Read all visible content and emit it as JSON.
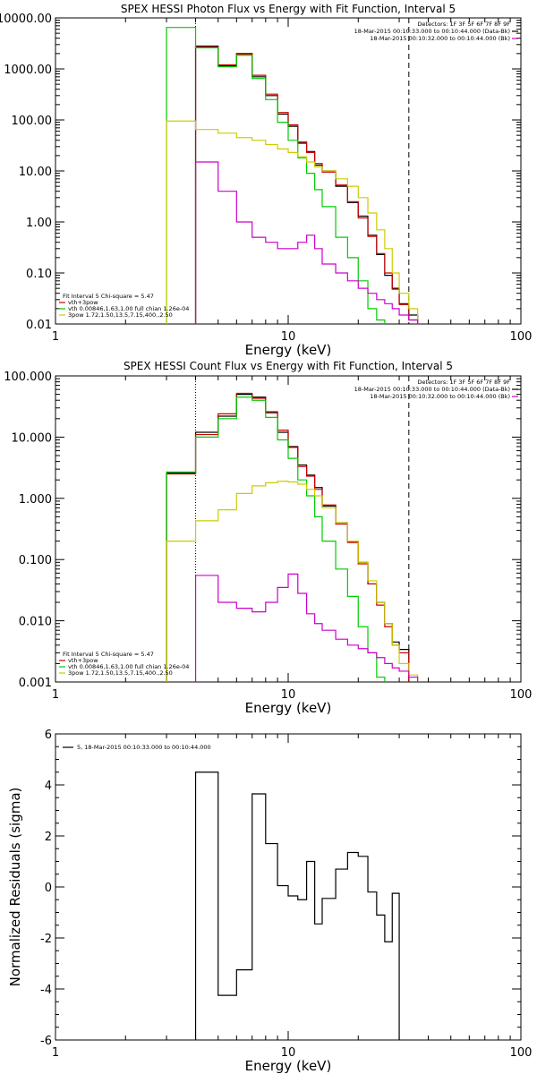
{
  "chart_data": [
    {
      "type": "line",
      "step": true,
      "title": "SPEX HESSI Photon Flux vs Energy with Fit Function, Interval 5",
      "xlabel": "Energy (keV)",
      "ylabel": "",
      "x_scale": "log",
      "y_scale": "log",
      "xlim": [
        1,
        100
      ],
      "ylim": [
        0.01,
        10000
      ],
      "x_ticks": [
        1,
        10,
        100
      ],
      "x_tick_labels": [
        "1",
        "10",
        "100"
      ],
      "y_ticks": [
        0.01,
        0.1,
        1,
        10,
        100,
        1000,
        10000
      ],
      "y_tick_labels": [
        "0.01",
        "0.10",
        "1.00",
        "10.00",
        "100.00",
        "1000.00",
        "10000.00"
      ],
      "dotted_vline": 4.0,
      "dashed_vline": 33.0,
      "legend_top": [
        {
          "text": "Detectors: 1F 3F 5F 6F 7F 8F 9F",
          "color": ""
        },
        {
          "text": "18-Mar-2015 00:10:33.000 to 00:10:44.000 (Data-Bk)",
          "color": "#000000"
        },
        {
          "text": "18-Mar-2015 00:10:32.000 to 00:10:44.000 (Bk)",
          "color": "#cc00cc"
        }
      ],
      "legend_bottom": [
        {
          "text": "Fit Interval 5   Chi-square = 5.47",
          "color": ""
        },
        {
          "text": "vth+3pow",
          "color": "#cc0000"
        },
        {
          "text": "vth 0.00846,1.63,1.00  full chian 1.26e-04",
          "color": "#00cc00"
        },
        {
          "text": "3pow 1.72,1.50,13.5,7.15,400.,2.50",
          "color": "#cccc00"
        }
      ],
      "bin_edges": [
        3.0,
        4.0,
        5.0,
        6.0,
        7.0,
        8.0,
        9.0,
        10.0,
        11.0,
        12.0,
        13.0,
        14.0,
        16.0,
        18.0,
        20.0,
        22.0,
        24.0,
        26.0,
        28.0,
        30.0,
        33.0,
        36.0
      ],
      "series": [
        {
          "name": "Data-Bk",
          "color": "#000000",
          "start_edge": 1,
          "values": [
            2800,
            1150,
            2000,
            700,
            300,
            130,
            75,
            35,
            24,
            13,
            10,
            5,
            2.4,
            1.3,
            0.55,
            0.23,
            0.09,
            0.05,
            0.025,
            0.015
          ]
        },
        {
          "name": "vth+3pow",
          "color": "#cc0000",
          "start_edge": 1,
          "values": [
            2700,
            1200,
            1950,
            750,
            320,
            140,
            80,
            37,
            23,
            14,
            9.5,
            5.3,
            2.5,
            1.2,
            0.52,
            0.24,
            0.1,
            0.048,
            0.024,
            0.012
          ]
        },
        {
          "name": "vth",
          "color": "#00cc00",
          "start_edge": 0,
          "values": [
            6500,
            2600,
            1100,
            1850,
            650,
            250,
            90,
            40,
            18,
            9,
            4.3,
            2.0,
            0.5,
            0.2,
            0.07,
            0.02,
            0.012
          ]
        },
        {
          "name": "3pow",
          "color": "#cccc00",
          "start_edge": 0,
          "values": [
            95,
            65,
            55,
            45,
            40,
            33,
            27,
            23,
            19,
            15,
            12,
            10,
            7,
            5,
            3,
            1.5,
            0.7,
            0.3,
            0.1,
            0.04,
            0.02
          ]
        },
        {
          "name": "Bk",
          "color": "#cc00cc",
          "start_edge": 1,
          "values": [
            15,
            4,
            1,
            0.5,
            0.4,
            0.3,
            0.3,
            0.4,
            0.55,
            0.3,
            0.15,
            0.1,
            0.07,
            0.05,
            0.04,
            0.03,
            0.025,
            0.02,
            0.015,
            0.012
          ]
        }
      ]
    },
    {
      "type": "line",
      "step": true,
      "title": "SPEX HESSI Count Flux vs Energy with Fit Function, Interval 5",
      "xlabel": "Energy (keV)",
      "ylabel": "",
      "x_scale": "log",
      "y_scale": "log",
      "xlim": [
        1,
        100
      ],
      "ylim": [
        0.001,
        100
      ],
      "x_ticks": [
        1,
        10,
        100
      ],
      "x_tick_labels": [
        "1",
        "10",
        "100"
      ],
      "y_ticks": [
        0.001,
        0.01,
        0.1,
        1,
        10,
        100
      ],
      "y_tick_labels": [
        "0.001",
        "0.010",
        "0.100",
        "1.000",
        "10.000",
        "100.000"
      ],
      "dotted_vline": 4.0,
      "dashed_vline": 33.0,
      "legend_top": [
        {
          "text": "Detectors: 1F 3F 5F 6F 7F 8F 9F",
          "color": ""
        },
        {
          "text": "18-Mar-2015 00:10:33.000 to 00:10:44.000 (Data-Bk)",
          "color": "#000000"
        },
        {
          "text": "18-Mar-2015 00:10:32.000 to 00:10:44.000 (Bk)",
          "color": "#cc00cc"
        }
      ],
      "legend_bottom": [
        {
          "text": "Fit Interval 5   Chi-square = 5.47",
          "color": ""
        },
        {
          "text": "vth+3pow",
          "color": "#cc0000"
        },
        {
          "text": "vth 0.00846,1.63,1.00  full chian 1.26e-04",
          "color": "#00cc00"
        },
        {
          "text": "3pow 1.72,1.50,13.5,7.15,400.,2.50",
          "color": "#cccc00"
        }
      ],
      "bin_edges": [
        3.0,
        4.0,
        5.0,
        6.0,
        7.0,
        8.0,
        9.0,
        10.0,
        11.0,
        12.0,
        13.0,
        14.0,
        16.0,
        18.0,
        20.0,
        22.0,
        24.0,
        26.0,
        28.0,
        30.0,
        33.0,
        36.0
      ],
      "series": [
        {
          "name": "Data-Bk",
          "color": "#000000",
          "start_edge": 0,
          "values": [
            2.6,
            12,
            22,
            50,
            45,
            25,
            12,
            7,
            3.5,
            2.4,
            1.5,
            0.75,
            0.4,
            0.2,
            0.09,
            0.04,
            0.02,
            0.009,
            0.0045,
            0.0034
          ]
        },
        {
          "name": "vth+3pow",
          "color": "#cc0000",
          "start_edge": 0,
          "values": [
            2.5,
            11,
            24,
            52,
            43,
            26,
            13,
            6.8,
            3.3,
            2.3,
            1.4,
            0.78,
            0.38,
            0.19,
            0.085,
            0.04,
            0.018,
            0.008,
            0.004,
            0.003
          ]
        },
        {
          "name": "vth",
          "color": "#00cc00",
          "start_edge": 0,
          "values": [
            2.7,
            10,
            20,
            45,
            40,
            21,
            9,
            4.5,
            2.0,
            1.1,
            0.5,
            0.2,
            0.07,
            0.025,
            0.008,
            0.003,
            0.0012
          ]
        },
        {
          "name": "3pow",
          "color": "#cccc00",
          "start_edge": 0,
          "values": [
            0.2,
            0.43,
            0.65,
            1.2,
            1.6,
            1.8,
            1.9,
            1.85,
            1.7,
            1.4,
            1.1,
            0.7,
            0.4,
            0.2,
            0.09,
            0.045,
            0.02,
            0.009,
            0.004,
            0.002,
            0.0013
          ]
        },
        {
          "name": "Bk",
          "color": "#cc00cc",
          "start_edge": 1,
          "values": [
            0.055,
            0.02,
            0.016,
            0.014,
            0.02,
            0.035,
            0.058,
            0.028,
            0.013,
            0.009,
            0.007,
            0.005,
            0.004,
            0.0035,
            0.003,
            0.0025,
            0.002,
            0.0017,
            0.0015,
            0.0012
          ]
        }
      ]
    },
    {
      "type": "line",
      "step": true,
      "title": "",
      "xlabel": "Energy (keV)",
      "ylabel": "Normalized Residuals (sigma)",
      "x_scale": "log",
      "y_scale": "linear",
      "xlim": [
        1,
        100
      ],
      "ylim": [
        -6,
        6
      ],
      "x_ticks": [
        1,
        10,
        100
      ],
      "x_tick_labels": [
        "1",
        "10",
        "100"
      ],
      "y_ticks": [
        -6,
        -4,
        -2,
        0,
        2,
        4,
        6
      ],
      "y_tick_labels": [
        "-6",
        "-4",
        "-2",
        "0",
        "2",
        "4",
        "6"
      ],
      "legend_top": [],
      "legend_res": {
        "text": "5, 18-Mar-2015 00:10:33.000 to 00:10:44.000",
        "color": "#000000"
      },
      "legend_bottom": [],
      "bin_edges": [
        4.0,
        5.0,
        6.0,
        7.0,
        8.0,
        9.0,
        10.0,
        11.0,
        12.0,
        13.0,
        14.0,
        16.0,
        18.0,
        20.0,
        22.0,
        24.0,
        26.0,
        28.0,
        30.0,
        33.0
      ],
      "series": [
        {
          "name": "residuals",
          "color": "#000000",
          "start_edge": 0,
          "drop_ends": true,
          "values": [
            4.5,
            -4.25,
            -3.25,
            3.65,
            1.7,
            0.05,
            -0.35,
            -0.5,
            1.0,
            -1.45,
            -0.45,
            0.7,
            1.35,
            1.2,
            -0.2,
            -1.1,
            -2.15,
            -0.25
          ]
        }
      ]
    }
  ]
}
